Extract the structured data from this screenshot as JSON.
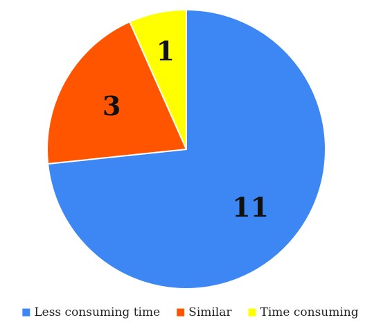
{
  "chart_data": {
    "type": "pie",
    "slices": [
      {
        "label": "Less consuming time",
        "value": 11,
        "color": "#3D87F5"
      },
      {
        "label": "Similar",
        "value": 3,
        "color": "#FF5500"
      },
      {
        "label": "Time consuming",
        "value": 1,
        "color": "#FFFF00"
      }
    ],
    "start_angle_deg": 0,
    "direction": "clockwise",
    "legend": {
      "position": "bottom"
    },
    "data_labels": "values"
  }
}
